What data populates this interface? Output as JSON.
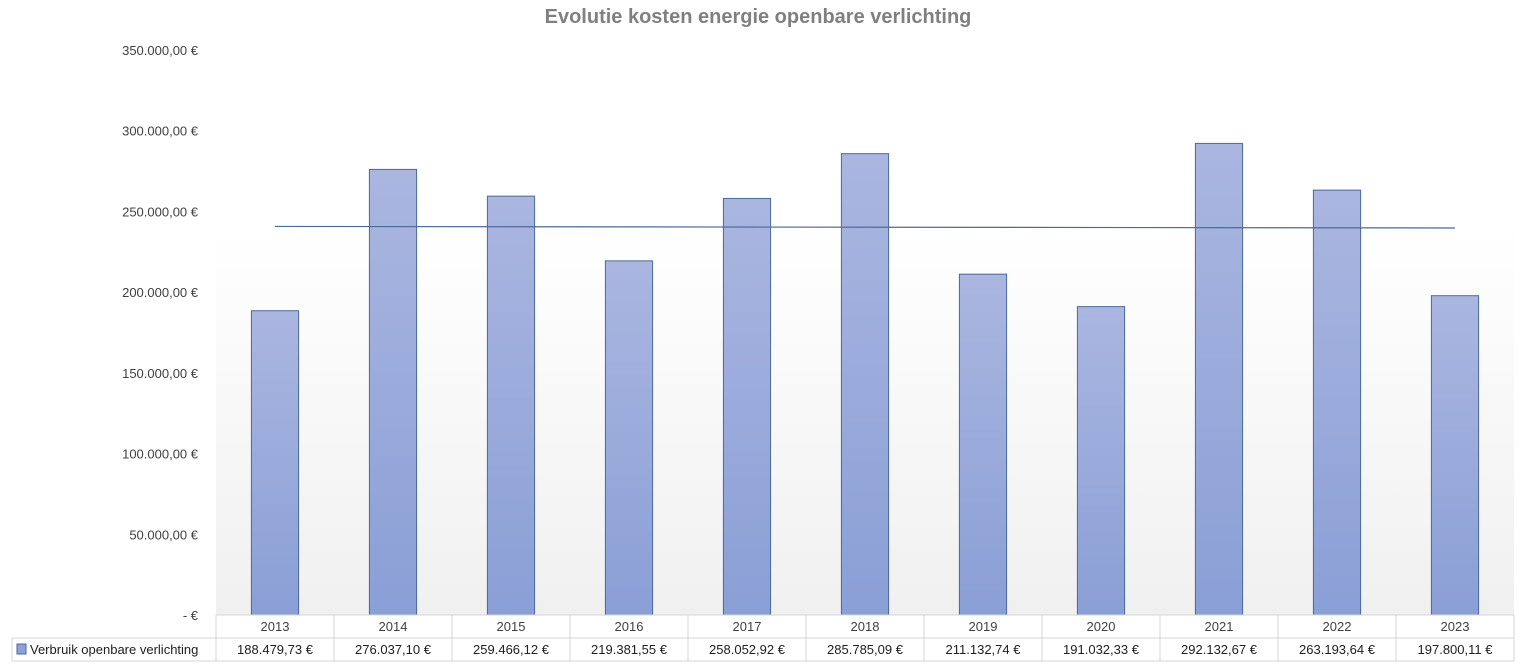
{
  "chart_data": {
    "type": "bar",
    "title": "Evolutie kosten energie openbare verlichting",
    "categories": [
      "2013",
      "2014",
      "2015",
      "2016",
      "2017",
      "2018",
      "2019",
      "2020",
      "2021",
      "2022",
      "2023"
    ],
    "series": [
      {
        "name": "Verbruik openbare verlichting",
        "values": [
          188479.73,
          276037.1,
          259466.12,
          219381.55,
          258052.92,
          285785.09,
          211132.74,
          191032.33,
          292132.67,
          263193.64,
          197800.11
        ],
        "value_labels": [
          "188.479,73 €",
          "276.037,10 €",
          "259.466,12 €",
          "219.381,55 €",
          "258.052,92 €",
          "285.785,09 €",
          "211.132,74 €",
          "191.032,33 €",
          "292.132,67 €",
          "263.193,64 €",
          "197.800,11 €"
        ],
        "color": "#8ea2d8",
        "border_color": "#4a6a9a"
      }
    ],
    "trend_line": {
      "type": "linear",
      "color": "#4a6a9a"
    },
    "ylim": [
      0,
      350000
    ],
    "y_ticks": [
      0,
      50000,
      100000,
      150000,
      200000,
      250000,
      300000,
      350000
    ],
    "y_tick_labels": [
      "-  €",
      "50.000,00 €",
      "100.000,00 €",
      "150.000,00 €",
      "200.000,00 €",
      "250.000,00 €",
      "300.000,00 €",
      "350.000,00 €"
    ],
    "xlabel": "",
    "ylabel": "",
    "grid": false,
    "legend": "data-table-left",
    "data_table": true
  }
}
